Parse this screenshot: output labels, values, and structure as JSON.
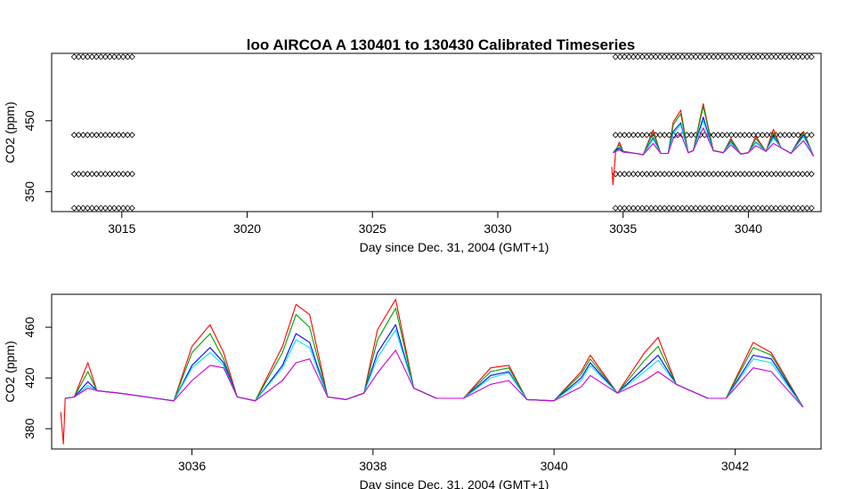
{
  "chart_data": [
    {
      "type": "scatter",
      "title": "loo   AIRCOA  A    130401  to  130430   Calibrated Timeseries",
      "xlabel": "Day since Dec. 31, 2004 (GMT+1)",
      "ylabel": "CO2 (ppm)",
      "xlim": [
        3012.2,
        3042.9
      ],
      "ylim": [
        322,
        545
      ],
      "x_ticks": [
        3015,
        3020,
        3025,
        3030,
        3035,
        3040
      ],
      "y_ticks": [
        350,
        450
      ],
      "grid": false,
      "reference_segments": [
        {
          "y": 540,
          "x": [
            [
              3013.1,
              3015.5
            ],
            [
              3034.7,
              3042.6
            ]
          ]
        },
        {
          "y": 430,
          "x": [
            [
              3013.1,
              3015.5
            ],
            [
              3034.7,
              3042.6
            ]
          ]
        },
        {
          "y": 375,
          "x": [
            [
              3013.1,
              3015.5
            ],
            [
              3034.7,
              3042.6
            ]
          ]
        },
        {
          "y": 327,
          "x": [
            [
              3013.1,
              3015.5
            ],
            [
              3034.7,
              3042.6
            ]
          ]
        }
      ],
      "series": [
        {
          "color": "#ff0000",
          "x": [
            3034.55,
            3034.6,
            3034.7,
            3034.85,
            3035.0,
            3035.5,
            3035.8,
            3036.2,
            3036.5,
            3036.8,
            3037.0,
            3037.3,
            3037.6,
            3037.8,
            3038.2,
            3038.6,
            3039.0,
            3039.3,
            3039.7,
            3040.0,
            3040.3,
            3040.7,
            3041.0,
            3041.3,
            3041.7,
            3042.2,
            3042.6
          ],
          "y": [
            385,
            360,
            405,
            420,
            407,
            404,
            402,
            437,
            404,
            404,
            448,
            465,
            405,
            408,
            474,
            408,
            405,
            425,
            403,
            405,
            428,
            407,
            438,
            412,
            404,
            435,
            400
          ]
        },
        {
          "color": "#00a000",
          "x": [
            3034.6,
            3034.85,
            3035.0,
            3035.5,
            3035.8,
            3036.2,
            3036.5,
            3036.8,
            3037.0,
            3037.3,
            3037.6,
            3037.8,
            3038.2,
            3038.6,
            3039.0,
            3039.3,
            3039.7,
            3040.0,
            3040.3,
            3040.7,
            3041.0,
            3041.3,
            3041.7,
            3042.2,
            3042.6
          ],
          "y": [
            405,
            416,
            407,
            404,
            402,
            433,
            404,
            404,
            444,
            460,
            405,
            408,
            470,
            408,
            405,
            423,
            403,
            405,
            425,
            407,
            433,
            412,
            404,
            433,
            400
          ]
        },
        {
          "color": "#0000ff",
          "x": [
            3034.6,
            3034.85,
            3035.0,
            3035.5,
            3035.8,
            3036.2,
            3036.5,
            3036.8,
            3037.0,
            3037.3,
            3037.6,
            3037.8,
            3038.2,
            3038.6,
            3039.0,
            3039.3,
            3039.7,
            3040.0,
            3040.3,
            3040.7,
            3041.0,
            3041.3,
            3041.7,
            3042.2,
            3042.6
          ],
          "y": [
            405,
            412,
            406,
            404,
            402,
            426,
            404,
            404,
            435,
            447,
            405,
            408,
            455,
            408,
            405,
            420,
            403,
            405,
            420,
            407,
            428,
            412,
            404,
            430,
            400
          ]
        },
        {
          "color": "#00e5ee",
          "x": [
            3034.6,
            3034.85,
            3035.0,
            3035.5,
            3035.8,
            3036.2,
            3036.5,
            3036.8,
            3037.0,
            3037.3,
            3037.6,
            3037.8,
            3038.2,
            3038.6,
            3039.0,
            3039.3,
            3039.7,
            3040.0,
            3040.3,
            3040.7,
            3041.0,
            3041.3,
            3041.7,
            3042.2,
            3042.6
          ],
          "y": [
            405,
            410,
            406,
            404,
            402,
            424,
            404,
            404,
            432,
            444,
            405,
            408,
            450,
            408,
            405,
            419,
            403,
            405,
            419,
            407,
            426,
            412,
            404,
            428,
            400
          ]
        },
        {
          "color": "#cc00cc",
          "x": [
            3034.6,
            3034.85,
            3035.0,
            3035.5,
            3035.8,
            3036.2,
            3036.5,
            3036.8,
            3037.0,
            3037.3,
            3037.6,
            3037.8,
            3038.2,
            3038.6,
            3039.0,
            3039.3,
            3039.7,
            3040.0,
            3040.3,
            3040.7,
            3041.0,
            3041.3,
            3041.7,
            3042.2,
            3042.6
          ],
          "y": [
            405,
            409,
            406,
            404,
            402,
            418,
            404,
            404,
            425,
            432,
            405,
            408,
            440,
            408,
            405,
            416,
            403,
            405,
            415,
            407,
            418,
            412,
            404,
            422,
            400
          ]
        }
      ]
    },
    {
      "type": "line",
      "title": "",
      "xlabel": "Day since Dec. 31, 2004 (GMT+1)",
      "ylabel": "CO2 (ppm)",
      "xlim": [
        3034.45,
        3042.95
      ],
      "ylim": [
        364,
        486
      ],
      "x_ticks": [
        3036,
        3038,
        3040,
        3042
      ],
      "y_ticks": [
        380,
        420,
        460
      ],
      "grid": false,
      "series": [
        {
          "color": "#ff0000",
          "x": [
            3034.55,
            3034.58,
            3034.6,
            3034.7,
            3034.85,
            3034.95,
            3035.2,
            3035.6,
            3035.8,
            3036.0,
            3036.2,
            3036.35,
            3036.5,
            3036.7,
            3037.0,
            3037.15,
            3037.3,
            3037.5,
            3037.7,
            3037.9,
            3038.05,
            3038.25,
            3038.45,
            3038.7,
            3039.0,
            3039.3,
            3039.5,
            3039.7,
            3040.0,
            3040.3,
            3040.4,
            3040.7,
            3041.0,
            3041.15,
            3041.35,
            3041.7,
            3041.9,
            3042.2,
            3042.4,
            3042.75
          ],
          "y": [
            393,
            368,
            404,
            405,
            432,
            410,
            408,
            404,
            402,
            445,
            462,
            440,
            405,
            402,
            445,
            478,
            470,
            405,
            403,
            408,
            458,
            482,
            412,
            404,
            404,
            428,
            430,
            403,
            402,
            425,
            438,
            408,
            440,
            452,
            415,
            404,
            404,
            448,
            440,
            397
          ]
        },
        {
          "color": "#00a000",
          "x": [
            3034.6,
            3034.7,
            3034.85,
            3034.95,
            3035.2,
            3035.6,
            3035.8,
            3036.0,
            3036.2,
            3036.35,
            3036.5,
            3036.7,
            3037.0,
            3037.15,
            3037.3,
            3037.5,
            3037.7,
            3037.9,
            3038.05,
            3038.25,
            3038.45,
            3038.7,
            3039.0,
            3039.3,
            3039.5,
            3039.7,
            3040.0,
            3040.3,
            3040.4,
            3040.7,
            3041.0,
            3041.15,
            3041.35,
            3041.7,
            3041.9,
            3042.2,
            3042.4,
            3042.75
          ],
          "y": [
            404,
            405,
            425,
            410,
            408,
            404,
            402,
            440,
            455,
            435,
            405,
            402,
            440,
            470,
            460,
            405,
            403,
            408,
            450,
            475,
            412,
            404,
            404,
            425,
            428,
            403,
            402,
            423,
            435,
            408,
            434,
            445,
            415,
            404,
            404,
            444,
            438,
            397
          ]
        },
        {
          "color": "#0000ff",
          "x": [
            3034.6,
            3034.7,
            3034.85,
            3034.95,
            3035.2,
            3035.6,
            3035.8,
            3036.0,
            3036.2,
            3036.35,
            3036.5,
            3036.7,
            3037.0,
            3037.15,
            3037.3,
            3037.5,
            3037.7,
            3037.9,
            3038.05,
            3038.25,
            3038.45,
            3038.7,
            3039.0,
            3039.3,
            3039.5,
            3039.7,
            3040.0,
            3040.3,
            3040.4,
            3040.7,
            3041.0,
            3041.15,
            3041.35,
            3041.7,
            3041.9,
            3042.2,
            3042.4,
            3042.75
          ],
          "y": [
            404,
            405,
            417,
            410,
            408,
            404,
            402,
            430,
            444,
            432,
            405,
            402,
            430,
            455,
            448,
            405,
            403,
            408,
            440,
            462,
            412,
            404,
            404,
            422,
            425,
            403,
            402,
            420,
            432,
            408,
            428,
            438,
            415,
            404,
            404,
            438,
            435,
            397
          ]
        },
        {
          "color": "#00e5ee",
          "x": [
            3034.6,
            3034.7,
            3034.85,
            3034.95,
            3035.2,
            3035.6,
            3035.8,
            3036.0,
            3036.2,
            3036.35,
            3036.5,
            3036.7,
            3037.0,
            3037.15,
            3037.3,
            3037.5,
            3037.7,
            3037.9,
            3038.05,
            3038.25,
            3038.45,
            3038.7,
            3039.0,
            3039.3,
            3039.5,
            3039.7,
            3040.0,
            3040.3,
            3040.4,
            3040.7,
            3041.0,
            3041.15,
            3041.35,
            3041.7,
            3041.9,
            3042.2,
            3042.4,
            3042.75
          ],
          "y": [
            404,
            405,
            414,
            410,
            408,
            404,
            402,
            428,
            440,
            430,
            405,
            402,
            428,
            450,
            444,
            405,
            403,
            408,
            436,
            458,
            412,
            404,
            404,
            420,
            424,
            403,
            402,
            418,
            430,
            408,
            425,
            434,
            415,
            404,
            404,
            435,
            432,
            397
          ]
        },
        {
          "color": "#cc00cc",
          "x": [
            3034.6,
            3034.7,
            3034.85,
            3034.95,
            3035.2,
            3035.6,
            3035.8,
            3036.0,
            3036.2,
            3036.35,
            3036.5,
            3036.7,
            3037.0,
            3037.15,
            3037.3,
            3037.5,
            3037.7,
            3037.9,
            3038.05,
            3038.25,
            3038.45,
            3038.7,
            3039.0,
            3039.3,
            3039.5,
            3039.7,
            3040.0,
            3040.3,
            3040.4,
            3040.7,
            3041.0,
            3041.15,
            3041.35,
            3041.7,
            3041.9,
            3042.2,
            3042.4,
            3042.75
          ],
          "y": [
            404,
            405,
            412,
            410,
            408,
            404,
            402,
            418,
            430,
            428,
            405,
            402,
            418,
            432,
            435,
            405,
            403,
            408,
            424,
            442,
            412,
            404,
            404,
            415,
            418,
            403,
            402,
            413,
            422,
            408,
            418,
            425,
            415,
            404,
            404,
            428,
            425,
            397
          ]
        }
      ]
    }
  ]
}
